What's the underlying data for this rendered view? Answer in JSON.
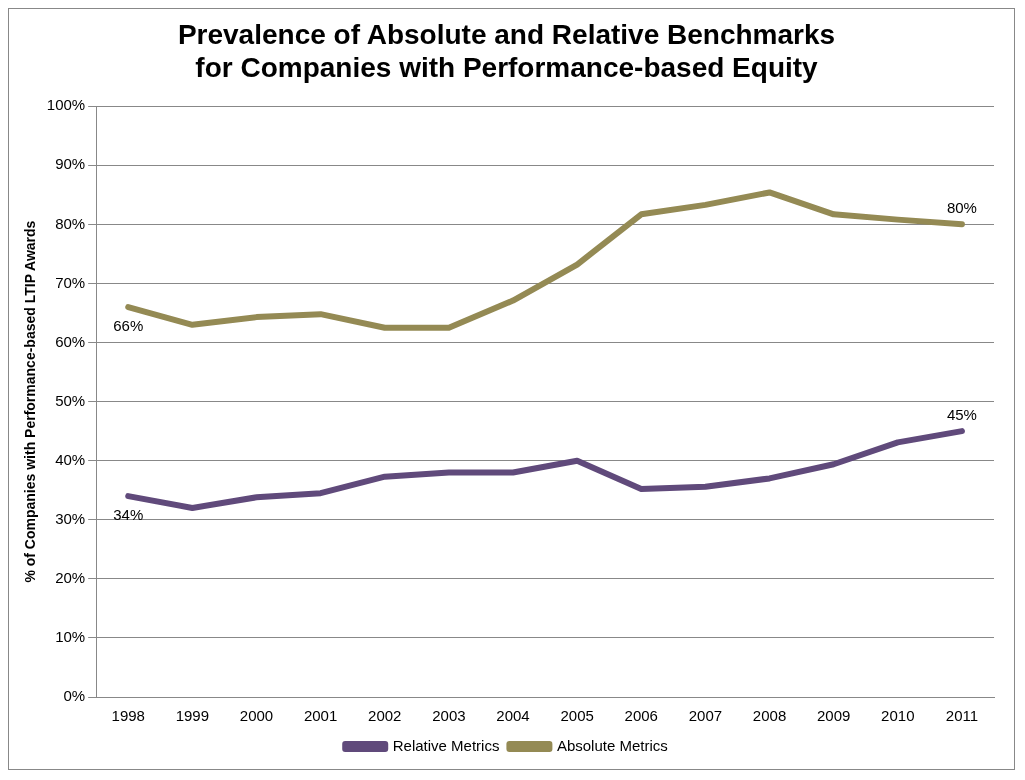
{
  "chart_data": {
    "type": "line",
    "title": "Prevalence of Absolute and Relative Benchmarks\nfor Companies with Performance-based Equity",
    "ylabel": "% of Companies with Performance-based LTIP Awards",
    "categories": [
      "1998",
      "1999",
      "2000",
      "2001",
      "2002",
      "2003",
      "2004",
      "2005",
      "2006",
      "2007",
      "2008",
      "2009",
      "2010",
      "2011"
    ],
    "series": [
      {
        "name": "Relative Metrics",
        "color": "#604a7b",
        "values": [
          34,
          32,
          33.8,
          34.5,
          37.3,
          38,
          38,
          40,
          35.2,
          35.6,
          37,
          39.4,
          43.1,
          45
        ],
        "value_labels": [
          "34%",
          null,
          null,
          null,
          null,
          null,
          null,
          null,
          null,
          null,
          null,
          null,
          null,
          "45%"
        ]
      },
      {
        "name": "Absolute Metrics",
        "color": "#948a54",
        "values": [
          66,
          63,
          64.3,
          64.8,
          62.5,
          62.5,
          67.1,
          73.2,
          81.7,
          83.3,
          85.4,
          81.7,
          80.8,
          80
        ],
        "value_labels": [
          "66%",
          null,
          null,
          null,
          null,
          null,
          null,
          null,
          null,
          null,
          null,
          null,
          null,
          "80%"
        ]
      }
    ],
    "ylim": [
      0,
      100
    ],
    "yticks": [
      {
        "value": 0,
        "label": "0%"
      },
      {
        "value": 10,
        "label": "10%"
      },
      {
        "value": 20,
        "label": "20%"
      },
      {
        "value": 30,
        "label": "30%"
      },
      {
        "value": 40,
        "label": "40%"
      },
      {
        "value": 50,
        "label": "50%"
      },
      {
        "value": 60,
        "label": "60%"
      },
      {
        "value": 70,
        "label": "70%"
      },
      {
        "value": 80,
        "label": "80%"
      },
      {
        "value": 90,
        "label": "90%"
      },
      {
        "value": 100,
        "label": "100%"
      }
    ],
    "grid": "y",
    "legend": "bottom",
    "marker": "none",
    "line_style": "solid"
  }
}
